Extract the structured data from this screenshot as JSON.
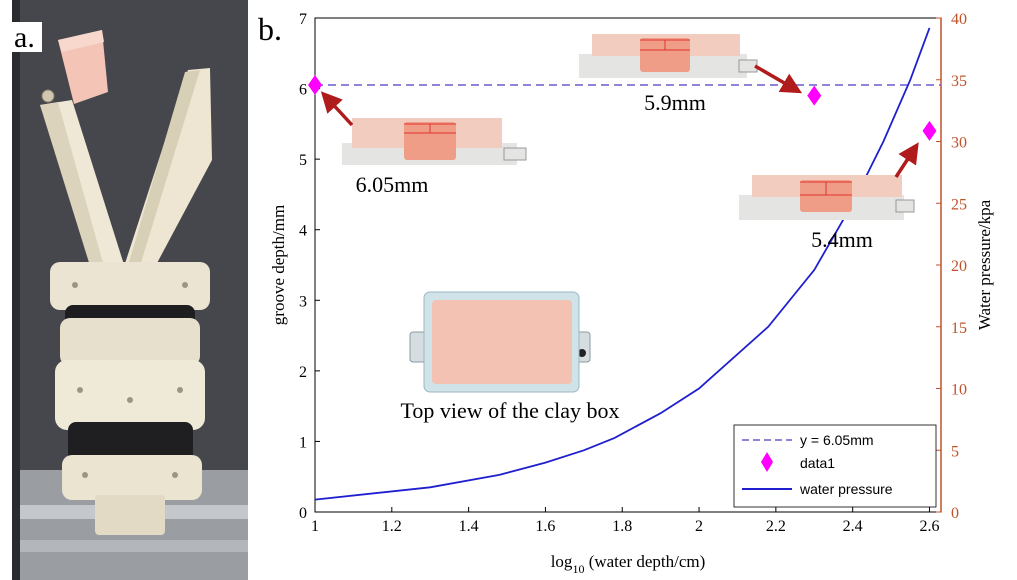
{
  "panel_a": {
    "label": "a."
  },
  "panel_b": {
    "label": "b.",
    "annotations": {
      "left": "6.05mm",
      "top": "5.9mm",
      "right": "5.4mm",
      "inset": "Top view of the clay box"
    }
  },
  "colors": {
    "left_axis": "#000000",
    "right_axis": "#c0522b",
    "hline": "#6a5acd",
    "markers": "#ff00ff",
    "curve": "#1f1fcf",
    "arrows": "#b01c1c",
    "clay": "#f0b9a8",
    "box": "#e6e6e6"
  },
  "chart_data": {
    "type": "line",
    "xlabel": "log",
    "xlabel_sub": "10",
    "xlabel_rest": " (water depth/cm)",
    "ylabel": "groove depth/mm",
    "y2label": "Water pressure/kpa",
    "xlim": [
      1,
      2.63
    ],
    "ylim": [
      0,
      7
    ],
    "y2lim": [
      0,
      40
    ],
    "xticks": [
      "1",
      "1.2",
      "1.4",
      "1.6",
      "1.8",
      "2",
      "2.2",
      "2.4",
      "2.6"
    ],
    "yticks": [
      "0",
      "1",
      "2",
      "3",
      "4",
      "5",
      "6",
      "7"
    ],
    "y2ticks": [
      "0",
      "5",
      "10",
      "15",
      "20",
      "25",
      "30",
      "35",
      "40"
    ],
    "hline": {
      "y": 6.05
    },
    "points": {
      "x": [
        1,
        2.3,
        2.6
      ],
      "y": [
        6.05,
        5.9,
        5.4
      ]
    },
    "water_pressure": {
      "axis": "right",
      "x": [
        1,
        1.3,
        1.48,
        1.6,
        1.7,
        1.78,
        1.9,
        2.0,
        2.18,
        2.3,
        2.4,
        2.48,
        2.55,
        2.6
      ],
      "y": [
        1.0,
        2.0,
        3.0,
        4.0,
        5.0,
        6.0,
        8.0,
        10.0,
        15.0,
        19.6,
        25.0,
        30.0,
        35.0,
        39.2
      ]
    },
    "legend": {
      "position": "bottom-right",
      "entries": [
        "y = 6.05mm",
        "data1",
        "water pressure"
      ]
    }
  }
}
